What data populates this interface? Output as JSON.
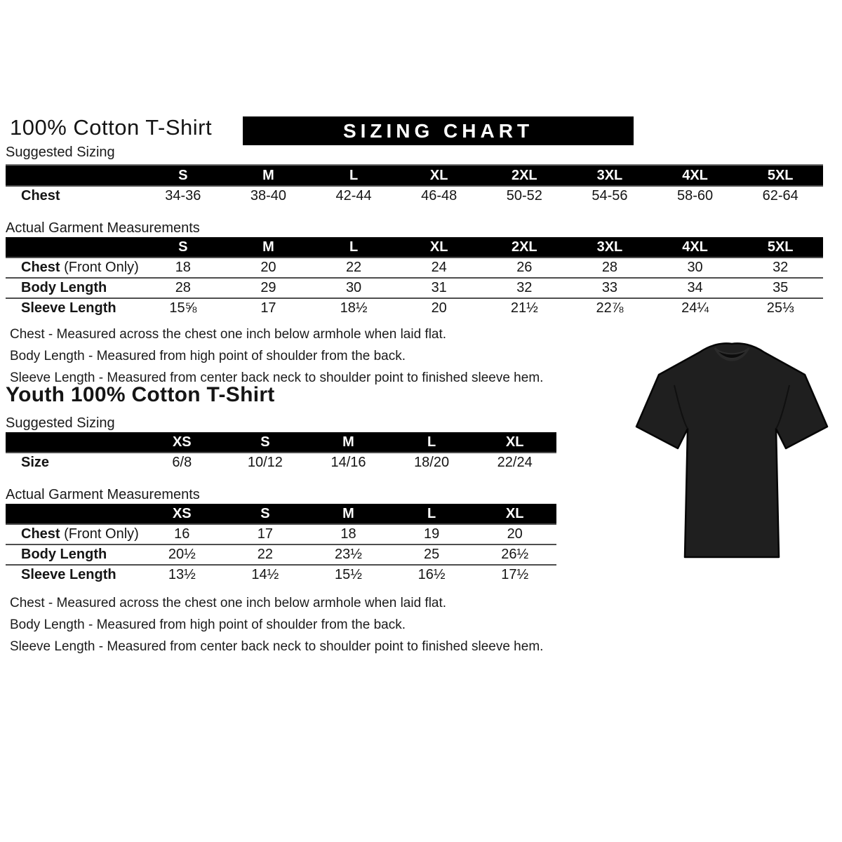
{
  "page": {
    "title": "100% Cotton T-Shirt",
    "banner": "SIZING CHART",
    "youth_title": "Youth 100% Cotton T-Shirt",
    "colors": {
      "banner_bg": "#000000",
      "banner_text": "#ffffff",
      "table_header_bg": "#000000",
      "table_header_text": "#ffffff",
      "body_text": "#151515",
      "tshirt_fill": "#1f1f1f"
    }
  },
  "adult": {
    "suggested": {
      "section_label": "Suggested Sizing",
      "columns": [
        "S",
        "M",
        "L",
        "XL",
        "2XL",
        "3XL",
        "4XL",
        "5XL"
      ],
      "rows": [
        {
          "label": "Chest",
          "suffix": "",
          "values": [
            "34-36",
            "38-40",
            "42-44",
            "46-48",
            "50-52",
            "54-56",
            "58-60",
            "62-64"
          ]
        }
      ]
    },
    "actual": {
      "section_label": "Actual Garment Measurements",
      "columns": [
        "S",
        "M",
        "L",
        "XL",
        "2XL",
        "3XL",
        "4XL",
        "5XL"
      ],
      "rows": [
        {
          "label": "Chest",
          "suffix": " (Front Only)",
          "values": [
            "18",
            "20",
            "22",
            "24",
            "26",
            "28",
            "30",
            "32"
          ]
        },
        {
          "label": "Body Length",
          "suffix": "",
          "values": [
            "28",
            "29",
            "30",
            "31",
            "32",
            "33",
            "34",
            "35"
          ]
        },
        {
          "label": "Sleeve Length",
          "suffix": "",
          "values": [
            "15⅝",
            "17",
            "18½",
            "20",
            "21½",
            "22⅞",
            "24¼",
            "25⅓"
          ]
        }
      ]
    },
    "notes": [
      "Chest - Measured across the chest one inch below armhole when laid flat.",
      "Body Length - Measured from high point of shoulder from the back.",
      "Sleeve Length - Measured from center back neck to shoulder point to finished sleeve hem."
    ]
  },
  "youth": {
    "suggested": {
      "section_label": "Suggested Sizing",
      "columns": [
        "XS",
        "S",
        "M",
        "L",
        "XL"
      ],
      "rows": [
        {
          "label": "Size",
          "suffix": "",
          "values": [
            "6/8",
            "10/12",
            "14/16",
            "18/20",
            "22/24"
          ]
        }
      ]
    },
    "actual": {
      "section_label": "Actual Garment Measurements",
      "columns": [
        "XS",
        "S",
        "M",
        "L",
        "XL"
      ],
      "rows": [
        {
          "label": "Chest",
          "suffix": " (Front Only)",
          "values": [
            "16",
            "17",
            "18",
            "19",
            "20"
          ]
        },
        {
          "label": "Body Length",
          "suffix": "",
          "values": [
            "20½",
            "22",
            "23½",
            "25",
            "26½"
          ]
        },
        {
          "label": "Sleeve Length",
          "suffix": "",
          "values": [
            "13½",
            "14½",
            "15½",
            "16½",
            "17½"
          ]
        }
      ]
    },
    "notes": [
      "Chest - Measured across the chest one inch below armhole when laid flat.",
      "Body Length - Measured from high point of shoulder from the back.",
      "Sleeve Length - Measured from center back neck to shoulder point to finished sleeve hem."
    ]
  },
  "tshirt_image": "black-short-sleeve-tshirt"
}
